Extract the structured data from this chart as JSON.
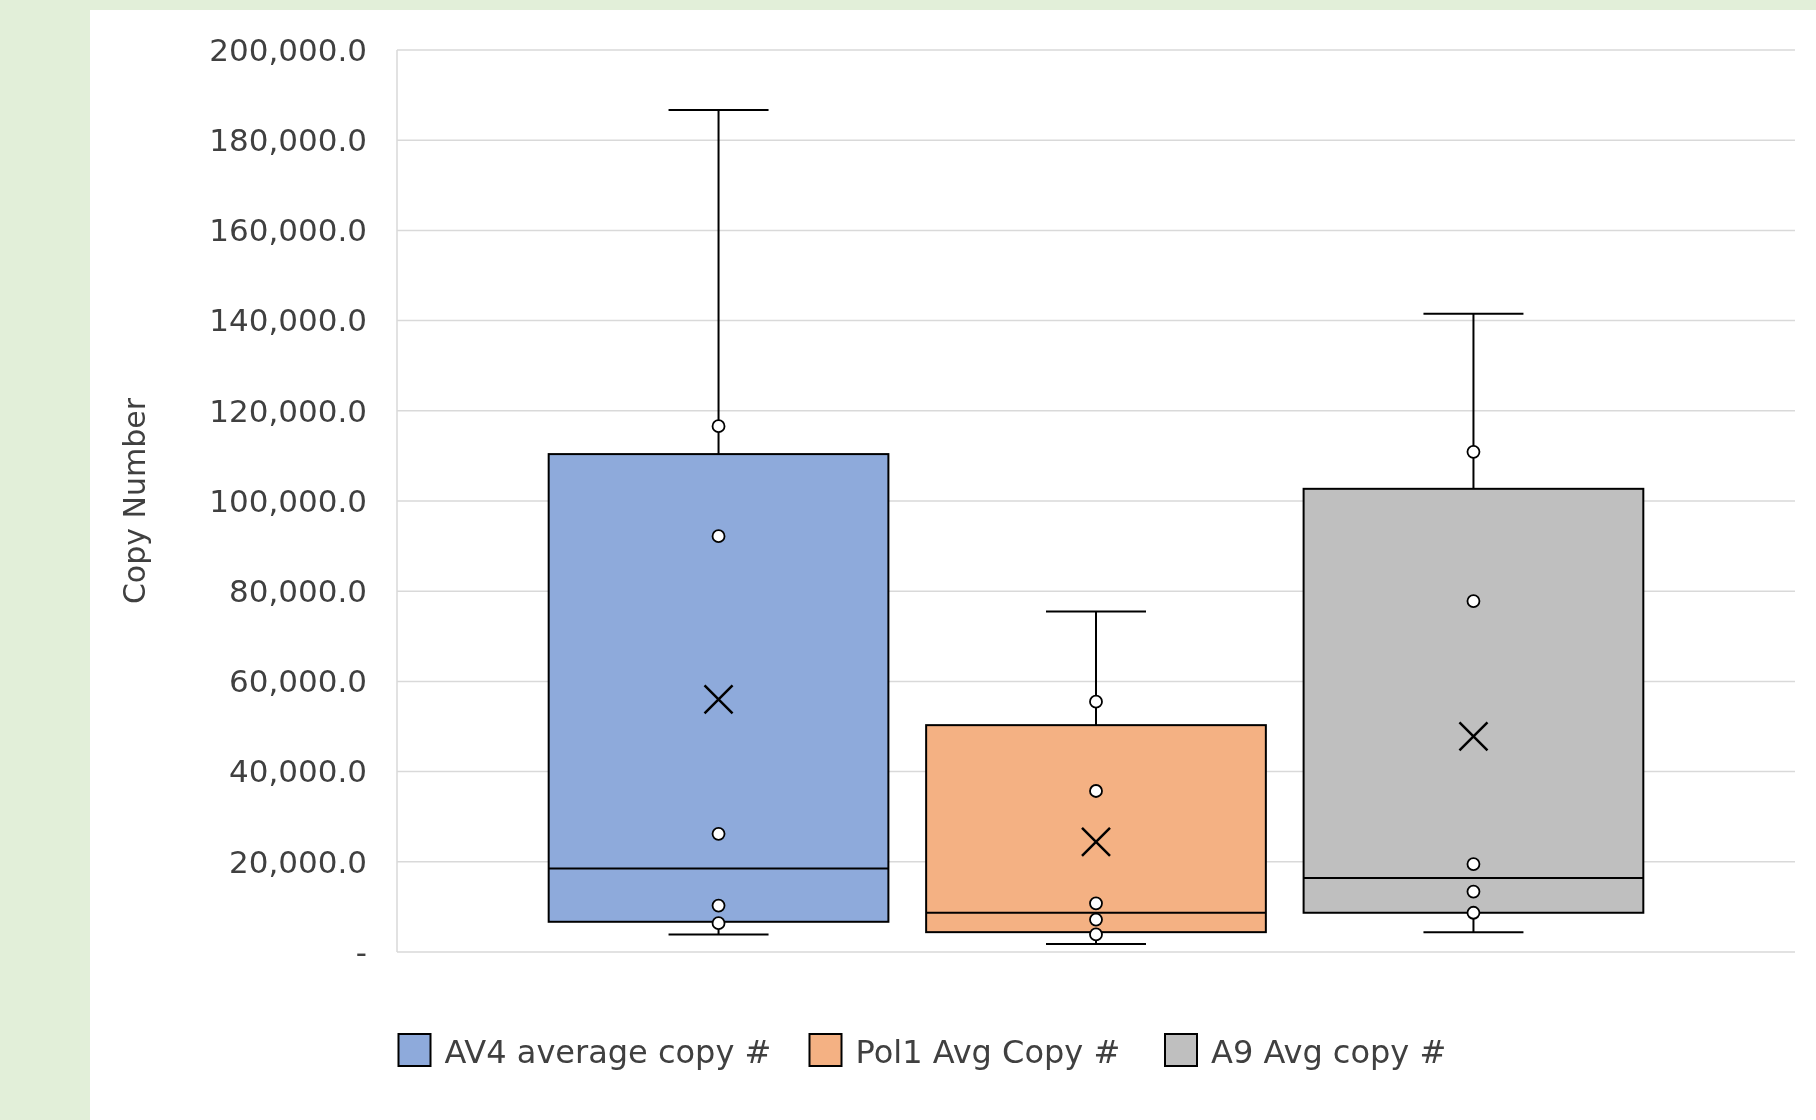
{
  "chart_data": {
    "type": "box",
    "ylabel": "Copy Number",
    "categories": [
      null
    ],
    "ylim": [
      0,
      200000
    ],
    "yticks": [
      {
        "value": 0,
        "label": "-"
      },
      {
        "value": 20000,
        "label": "20,000.0"
      },
      {
        "value": 40000,
        "label": "40,000.0"
      },
      {
        "value": 60000,
        "label": "60,000.0"
      },
      {
        "value": 80000,
        "label": "80,000.0"
      },
      {
        "value": 100000,
        "label": "100,000.0"
      },
      {
        "value": 120000,
        "label": "120,000.0"
      },
      {
        "value": 140000,
        "label": "140,000.0"
      },
      {
        "value": 160000,
        "label": "160,000.0"
      },
      {
        "value": 180000,
        "label": "180,000.0"
      },
      {
        "value": 200000,
        "label": "200,000.0"
      }
    ],
    "grid": "y",
    "legend": "bottom",
    "marker": "circle",
    "series": [
      {
        "name": "AV4 average copy #",
        "color": "#8eaadb",
        "boxes": [
          {
            "low": 3900,
            "q1": 6700,
            "median": 18500,
            "q3": 110400,
            "high": 186700,
            "mean": 56000,
            "outliers": [
              116600,
              92200,
              26200,
              10300,
              6400
            ]
          }
        ]
      },
      {
        "name": "Pol1 Avg Copy #",
        "color": "#f4b183",
        "boxes": [
          {
            "low": 1800,
            "q1": 4400,
            "median": 8700,
            "q3": 50300,
            "high": 75500,
            "mean": 24400,
            "outliers": [
              55500,
              35700,
              10800,
              7200,
              3900
            ]
          }
        ]
      },
      {
        "name": "A9 Avg copy #",
        "color": "#bfbfbf",
        "boxes": [
          {
            "low": 4400,
            "q1": 8700,
            "median": 16400,
            "q3": 102700,
            "high": 141500,
            "mean": 47800,
            "outliers": [
              110900,
              77800,
              19500,
              13400,
              8700
            ]
          }
        ]
      }
    ]
  }
}
